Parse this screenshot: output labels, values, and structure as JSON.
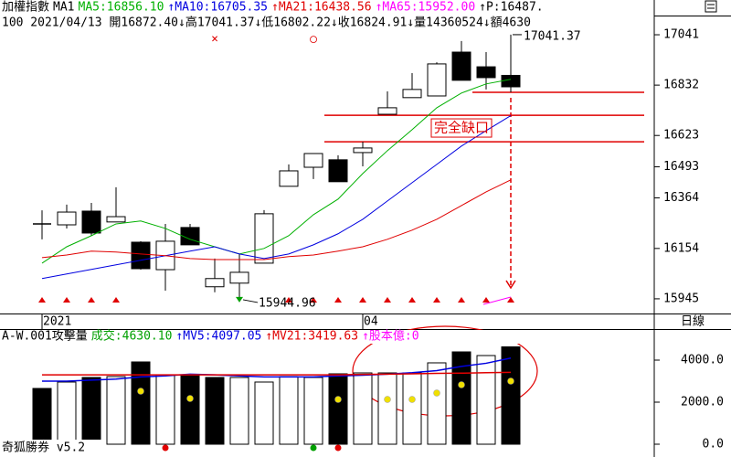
{
  "chart_data": [
    {
      "type": "candlestick",
      "title": "加權指數",
      "subtitle": "MA1",
      "info_line": "100 2021/04/13 開16872.40↓高17041.37↓低16802.22↓收16824.91↓量14360524↓額4630",
      "categories": [
        "2021",
        null,
        null,
        null,
        null,
        null,
        null,
        null,
        null,
        null,
        null,
        null,
        null,
        "04",
        null,
        null,
        null,
        null,
        null,
        null
      ],
      "open": [
        16256,
        16252,
        16309,
        16264,
        16180,
        16066,
        16241,
        15995,
        16010,
        16093,
        16412,
        16491,
        16522,
        16552,
        16711,
        16780,
        16787,
        16969,
        16908,
        16872.4
      ],
      "high": [
        16312,
        16336,
        16343,
        16408,
        16184,
        16256,
        16256,
        16112,
        16131,
        16313,
        16503,
        16548,
        16541,
        16597,
        16806,
        16882,
        16927,
        17015,
        16969,
        17041.37
      ],
      "low": [
        16192,
        16237,
        16207,
        16264,
        16066,
        15979,
        16169,
        15972,
        15944.96,
        16093,
        16412,
        16442,
        16431,
        16495,
        16711,
        16780,
        16787,
        16852,
        16814,
        16802.22
      ],
      "close": [
        16256,
        16305,
        16218,
        16286,
        16070,
        16184,
        16169,
        16029,
        16055,
        16298,
        16476,
        16548,
        16431,
        16571,
        16738,
        16814,
        16920,
        16852,
        16863,
        16824.91
      ],
      "up_color": "#ffffff",
      "down_color": "#000000",
      "series": [
        {
          "name": "MA5:16856.10",
          "color": "#00b000",
          "values": [
            16093,
            16161,
            16207,
            16256,
            16268,
            16237,
            16192,
            16161,
            16131,
            16154,
            16207,
            16294,
            16359,
            16465,
            16560,
            16647,
            16738,
            16799,
            16837,
            16856.1
          ]
        },
        {
          "name": "↑MA10:16705.35",
          "color": "#0000e0",
          "values": [
            16029,
            16048,
            16067,
            16086,
            16105,
            16124,
            16143,
            16161,
            16131,
            16112,
            16131,
            16169,
            16215,
            16275,
            16351,
            16427,
            16503,
            16579,
            16643,
            16705.35
          ]
        },
        {
          "name": "↑MA21:16438.56",
          "color": "#e00000",
          "values": [
            16116,
            16127,
            16143,
            16139,
            16131,
            16124,
            16112,
            16108,
            16108,
            16108,
            16120,
            16127,
            16143,
            16161,
            16192,
            16230,
            16275,
            16332,
            16389,
            16438.56
          ]
        }
      ],
      "legend_extra": [
        {
          "text": "↑MA65:15952.00",
          "color": "#ff00ff"
        },
        {
          "text": "↑P:16487.",
          "color": "#000000"
        }
      ],
      "ylim": [
        15884,
        17117
      ],
      "yticks": [
        15945,
        16154,
        16364,
        16493,
        16623,
        16832,
        17041
      ],
      "hlines": [
        {
          "value": 16802.22,
          "from_index": 18
        },
        {
          "value": 16707,
          "from_index": 12
        },
        {
          "value": 16597,
          "from_index": 12
        }
      ],
      "hline_color": "#e00000",
      "up_markers": [
        true,
        true,
        true,
        true,
        false,
        false,
        false,
        false,
        false,
        false,
        true,
        true,
        true,
        true,
        true,
        true,
        true,
        true,
        true,
        true
      ],
      "marker_color": "#e00000",
      "annotations": [
        {
          "text": "17041.37",
          "index": 19,
          "value": 17041.37
        },
        {
          "text": "15944.96",
          "index": 8,
          "value": 15944.96
        },
        {
          "text": "完全缺口",
          "index": 17,
          "value": 16654
        },
        {
          "text": "×",
          "index": 7,
          "value": 17022
        },
        {
          "text": "○",
          "index": 11,
          "value": 17022
        }
      ],
      "period_label": "日線"
    },
    {
      "type": "bar",
      "title": "A-W.001攻擊量",
      "legend_lead": {
        "text": "成交:4630.10",
        "color": "#00a000"
      },
      "values": [
        2652,
        2957,
        3174,
        3217,
        3913,
        3304,
        3304,
        3174,
        3174,
        2957,
        3217,
        3174,
        3348,
        3391,
        3391,
        3391,
        3870,
        4391,
        4217,
        4630.1
      ],
      "colors": [
        "#000000",
        "#ffffff",
        "#000000",
        "#ffffff",
        "#000000",
        "#ffffff",
        "#000000",
        "#000000",
        "#ffffff",
        "#ffffff",
        "#ffffff",
        "#ffffff",
        "#000000",
        "#ffffff",
        "#ffffff",
        "#ffffff",
        "#ffffff",
        "#000000",
        "#ffffff",
        "#000000"
      ],
      "series": [
        {
          "name": "↑MV5:4097.05",
          "color": "#0000e0",
          "values": [
            3000,
            3000,
            3050,
            3100,
            3200,
            3250,
            3330,
            3300,
            3250,
            3200,
            3200,
            3200,
            3250,
            3280,
            3330,
            3400,
            3500,
            3700,
            3850,
            4097.05
          ]
        },
        {
          "name": "↑MV21:3419.63",
          "color": "#e00000",
          "values": [
            3300,
            3300,
            3300,
            3300,
            3300,
            3300,
            3300,
            3300,
            3300,
            3300,
            3300,
            3300,
            3300,
            3320,
            3330,
            3350,
            3370,
            3380,
            3400,
            3419.63
          ]
        }
      ],
      "legend_extra": [
        {
          "text": "↑股本億:0",
          "color": "#ff00ff"
        }
      ],
      "dots": {
        "color": "#f0e000",
        "values": [
          null,
          null,
          null,
          null,
          2522,
          null,
          2174,
          null,
          null,
          null,
          null,
          null,
          2130,
          null,
          2130,
          2130,
          2435,
          2826,
          null,
          3000
        ]
      },
      "signal_dots": [
        {
          "index": 5,
          "color": "#e00000"
        },
        {
          "index": 11,
          "color": "#00a000"
        },
        {
          "index": 12,
          "color": "#e00000"
        }
      ],
      "ylim": [
        -478,
        5391
      ],
      "yticks": [
        {
          "value": 4000,
          "label": "4000.0"
        },
        {
          "value": 2000,
          "label": "2000.0"
        },
        {
          "value": 0,
          "label": "0.0"
        }
      ],
      "footer": "奇狐勝券 v5.2"
    }
  ]
}
